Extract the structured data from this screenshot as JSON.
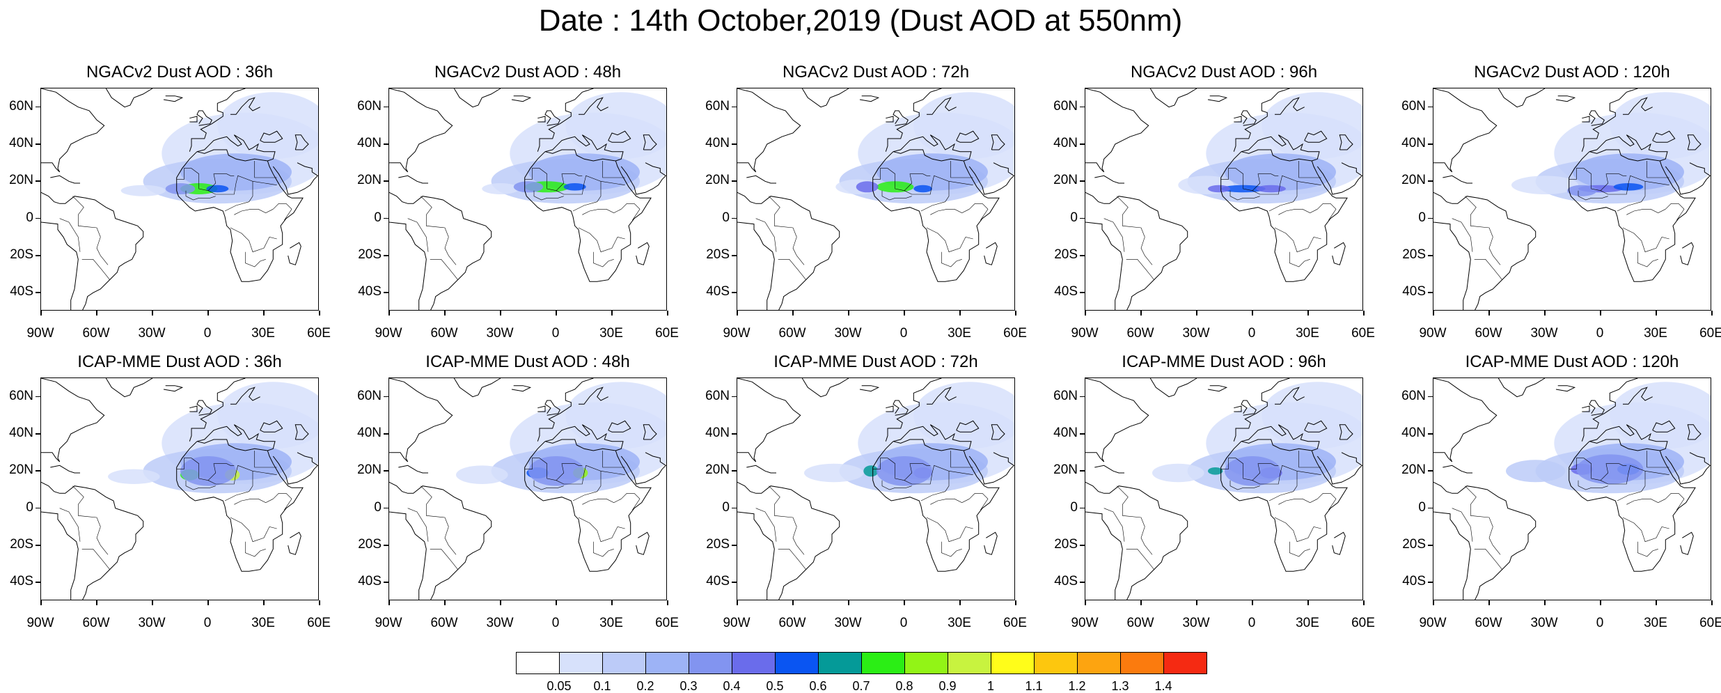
{
  "main_title": "Date : 14th October,2019 (Dust AOD at 550nm)",
  "panels": [
    {
      "title": "NGACv2 Dust AOD : 36h",
      "model": "NGACv2",
      "hour": 36
    },
    {
      "title": "NGACv2 Dust AOD : 48h",
      "model": "NGACv2",
      "hour": 48
    },
    {
      "title": "NGACv2 Dust AOD : 72h",
      "model": "NGACv2",
      "hour": 72
    },
    {
      "title": "NGACv2 Dust AOD : 96h",
      "model": "NGACv2",
      "hour": 96
    },
    {
      "title": "NGACv2 Dust AOD : 120h",
      "model": "NGACv2",
      "hour": 120
    },
    {
      "title": "ICAP-MME Dust AOD : 36h",
      "model": "ICAP-MME",
      "hour": 36
    },
    {
      "title": "ICAP-MME Dust AOD : 48h",
      "model": "ICAP-MME",
      "hour": 48
    },
    {
      "title": "ICAP-MME Dust AOD : 72h",
      "model": "ICAP-MME",
      "hour": 72
    },
    {
      "title": "ICAP-MME Dust AOD : 96h",
      "model": "ICAP-MME",
      "hour": 96
    },
    {
      "title": "ICAP-MME Dust AOD : 120h",
      "model": "ICAP-MME",
      "hour": 120
    }
  ],
  "lat_ticks": [
    "60N",
    "40N",
    "20N",
    "0",
    "20S",
    "40S"
  ],
  "lon_ticks": [
    "90W",
    "60W",
    "30W",
    "0",
    "30E",
    "60E"
  ],
  "colorbar": {
    "labels": [
      "0.05",
      "0.1",
      "0.2",
      "0.3",
      "0.4",
      "0.5",
      "0.6",
      "0.7",
      "0.8",
      "0.9",
      "1",
      "1.1",
      "1.2",
      "1.3",
      "1.4"
    ],
    "colors": [
      "#ffffff",
      "#d7e1fb",
      "#bccbf8",
      "#9db3f6",
      "#8294f0",
      "#6a6ceb",
      "#0a55f2",
      "#059a98",
      "#2bee15",
      "#92f416",
      "#c8f33f",
      "#fffd1a",
      "#fdc70e",
      "#fda410",
      "#fb7b0e",
      "#f52a12"
    ]
  }
}
